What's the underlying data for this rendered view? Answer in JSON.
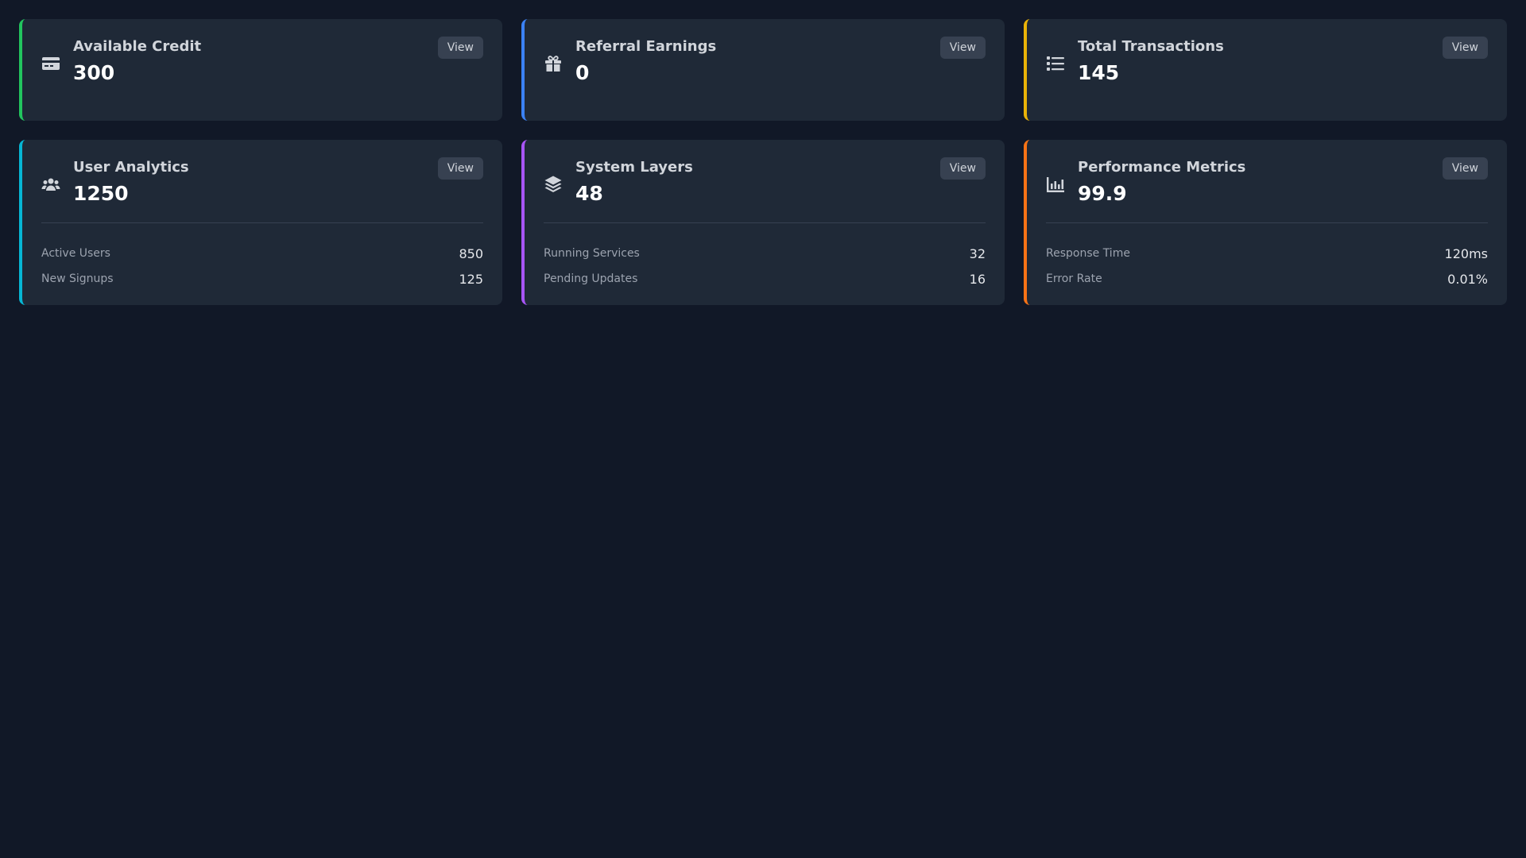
{
  "colors": {
    "background": "#111827",
    "card": "#1f2937",
    "green": "#22c55e",
    "blue": "#3b82f6",
    "yellow": "#eab308",
    "cyan": "#06b6d4",
    "purple": "#a855f7",
    "orange": "#f97316"
  },
  "cards": [
    {
      "title": "Available Credit",
      "value": "300",
      "button": "View",
      "icon": "credit-card-icon",
      "accent": "#22c55e"
    },
    {
      "title": "Referral Earnings",
      "value": "0",
      "button": "View",
      "icon": "gift-icon",
      "accent": "#3b82f6"
    },
    {
      "title": "Total Transactions",
      "value": "145",
      "button": "View",
      "icon": "list-icon",
      "accent": "#eab308"
    },
    {
      "title": "User Analytics",
      "value": "1250",
      "button": "View",
      "icon": "users-icon",
      "accent": "#06b6d4",
      "stats": [
        {
          "label": "Active Users",
          "value": "850"
        },
        {
          "label": "New Signups",
          "value": "125"
        }
      ]
    },
    {
      "title": "System Layers",
      "value": "48",
      "button": "View",
      "icon": "layers-icon",
      "accent": "#a855f7",
      "stats": [
        {
          "label": "Running Services",
          "value": "32"
        },
        {
          "label": "Pending Updates",
          "value": "16"
        }
      ]
    },
    {
      "title": "Performance Metrics",
      "value": "99.9",
      "button": "View",
      "icon": "bar-chart-icon",
      "accent": "#f97316",
      "stats": [
        {
          "label": "Response Time",
          "value": "120ms"
        },
        {
          "label": "Error Rate",
          "value": "0.01%"
        }
      ]
    }
  ]
}
